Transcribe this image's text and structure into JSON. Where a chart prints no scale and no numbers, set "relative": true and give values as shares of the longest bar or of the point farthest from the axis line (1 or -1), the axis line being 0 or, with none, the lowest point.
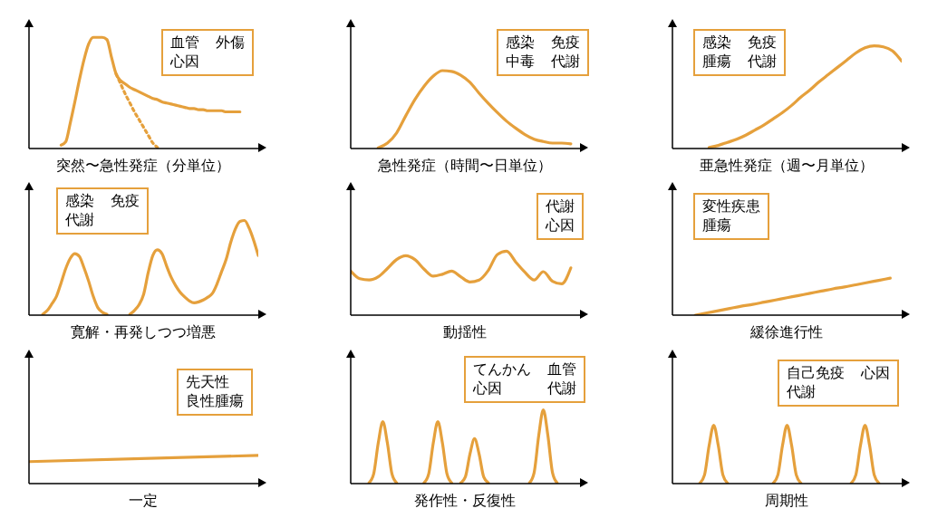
{
  "chart_data": [
    {
      "type": "line",
      "relative": true,
      "marker": "none",
      "xlabel": "突然〜急性発症（分単位）",
      "annotations": [
        "血管",
        "外傷",
        "心因"
      ],
      "categories": [
        null,
        null,
        null,
        null,
        null,
        null,
        null,
        null,
        null,
        null,
        null,
        null,
        null,
        null,
        null,
        null,
        null,
        null,
        null,
        null,
        null,
        null,
        null,
        null,
        null,
        null,
        null,
        null,
        null,
        null,
        null,
        null,
        null,
        null,
        null,
        null,
        null,
        null,
        null,
        null,
        null,
        null,
        null,
        null,
        null,
        null,
        null,
        null,
        null,
        null,
        null
      ],
      "series": [
        {
          "color": "#e5a03c",
          "line_style": "solid",
          "values": [
            null,
            null,
            null,
            null,
            null,
            null,
            null,
            0.03,
            0.06,
            0.23,
            0.42,
            0.62,
            0.8,
            0.94,
            1,
            1,
            1,
            0.98,
            0.82,
            0.67,
            0.61,
            0.58,
            0.55,
            0.53,
            0.51,
            0.49,
            0.47,
            0.45,
            0.44,
            0.42,
            0.41,
            0.4,
            0.39,
            0.38,
            0.37,
            0.36,
            0.36,
            0.35,
            0.35,
            0.34,
            0.34,
            0.34,
            0.34,
            0.33,
            0.33,
            0.33,
            0.33,
            null,
            null,
            null,
            null
          ]
        },
        {
          "color": "#e5a03c",
          "line_style": "dotted",
          "values": [
            null,
            null,
            null,
            null,
            null,
            null,
            null,
            null,
            null,
            null,
            null,
            null,
            null,
            null,
            null,
            null,
            null,
            null,
            null,
            0.67,
            0.58,
            0.49,
            0.41,
            0.33,
            0.26,
            0.19,
            0.12,
            0.05,
            0.01,
            null,
            null,
            null,
            null,
            null,
            null,
            null,
            null,
            null,
            null,
            null,
            null,
            null,
            null,
            null,
            null,
            null,
            null,
            null,
            null,
            null,
            null
          ]
        }
      ]
    },
    {
      "type": "line",
      "relative": true,
      "marker": "none",
      "xlabel": "急性発症（時間〜日単位）",
      "annotations": [
        "感染",
        "免疫",
        "中毒",
        "代謝"
      ],
      "categories": [
        null,
        null,
        null,
        null,
        null,
        null,
        null,
        null,
        null,
        null,
        null,
        null,
        null,
        null,
        null,
        null,
        null,
        null,
        null,
        null,
        null,
        null,
        null,
        null,
        null,
        null
      ],
      "series": [
        {
          "color": "#e5a03c",
          "line_style": "solid",
          "values": [
            null,
            null,
            null,
            0.01,
            0.07,
            0.2,
            0.42,
            0.63,
            0.8,
            0.93,
            1,
            0.99,
            0.94,
            0.85,
            0.71,
            0.58,
            0.46,
            0.35,
            0.26,
            0.18,
            0.12,
            0.09,
            0.07,
            0.07,
            0.06,
            null
          ]
        }
      ]
    },
    {
      "type": "line",
      "relative": true,
      "marker": "none",
      "xlabel": "亜急性発症（週〜月単位）",
      "annotations": [
        "感染",
        "免疫",
        "腫瘍",
        "代謝"
      ],
      "categories": [
        null,
        null,
        null,
        null,
        null,
        null,
        null,
        null,
        null,
        null,
        null,
        null,
        null,
        null,
        null,
        null,
        null,
        null,
        null,
        null,
        null,
        null,
        null,
        null,
        null,
        null
      ],
      "series": [
        {
          "color": "#e5a03c",
          "line_style": "solid",
          "values": [
            null,
            null,
            null,
            null,
            0.01,
            0.03,
            0.06,
            0.09,
            0.13,
            0.18,
            0.23,
            0.29,
            0.35,
            0.42,
            0.5,
            0.57,
            0.65,
            0.72,
            0.79,
            0.86,
            0.93,
            0.98,
            1,
            0.99,
            0.95,
            0.85
          ]
        }
      ]
    },
    {
      "type": "line",
      "relative": true,
      "marker": "none",
      "xlabel": "寛解・再発しつつ増悪",
      "annotations": [
        "感染",
        "免疫",
        "代謝"
      ],
      "categories": [
        null,
        null,
        null,
        null,
        null,
        null,
        null,
        null,
        null,
        null,
        null,
        null,
        null,
        null,
        null,
        null,
        null,
        null,
        null,
        null,
        null,
        null,
        null,
        null,
        null,
        null,
        null,
        null,
        null,
        null,
        null,
        null,
        null,
        null,
        null,
        null,
        null,
        null,
        null,
        null,
        null,
        null,
        null,
        null,
        null,
        null,
        null,
        null,
        null,
        null,
        null
      ],
      "series": [
        {
          "color": "#e5a03c",
          "line_style": "solid",
          "values": [
            null,
            null,
            null,
            0.01,
            0.05,
            0.12,
            0.2,
            0.34,
            0.49,
            0.6,
            0.65,
            0.62,
            0.5,
            0.36,
            0.2,
            0.08,
            0.03,
            0.01,
            null,
            null,
            null,
            null,
            0.01,
            0.05,
            0.11,
            0.22,
            0.45,
            0.63,
            0.69,
            0.65,
            0.52,
            0.4,
            0.31,
            0.24,
            0.19,
            0.15,
            0.13,
            0.14,
            0.16,
            0.19,
            0.23,
            0.33,
            0.46,
            0.59,
            0.77,
            0.91,
            0.99,
            1,
            0.92,
            0.79,
            0.63
          ]
        }
      ]
    },
    {
      "type": "line",
      "relative": true,
      "marker": "none",
      "xlabel": "動揺性",
      "annotations": [
        "代謝",
        "心因"
      ],
      "categories": [
        null,
        null,
        null,
        null,
        null,
        null,
        null,
        null,
        null,
        null,
        null,
        null,
        null,
        null,
        null,
        null,
        null,
        null,
        null,
        null,
        null,
        null,
        null,
        null,
        null,
        null
      ],
      "series": [
        {
          "color": "#e5a03c",
          "line_style": "solid",
          "values": [
            0.69,
            0.57,
            0.55,
            0.6,
            0.73,
            0.87,
            0.93,
            0.87,
            0.72,
            0.61,
            0.64,
            0.69,
            0.6,
            0.52,
            0.55,
            0.7,
            0.95,
            1,
            0.83,
            0.67,
            0.55,
            0.68,
            0.53,
            0.49,
            0.74,
            null
          ]
        }
      ]
    },
    {
      "type": "line",
      "relative": true,
      "marker": "none",
      "xlabel": "緩徐進行性",
      "annotations": [
        "変性疾患",
        "腫瘍"
      ],
      "categories": [
        null,
        null,
        null,
        null,
        null,
        null,
        null,
        null,
        null,
        null,
        null,
        null,
        null,
        null,
        null,
        null,
        null,
        null,
        null,
        null,
        null
      ],
      "series": [
        {
          "color": "#e5a03c",
          "line_style": "solid",
          "values": [
            null,
            null,
            0,
            0.06,
            0.12,
            0.18,
            0.24,
            0.29,
            0.35,
            0.41,
            0.47,
            0.53,
            0.59,
            0.65,
            0.71,
            0.76,
            0.82,
            0.88,
            0.94,
            1,
            null
          ]
        }
      ]
    },
    {
      "type": "line",
      "relative": true,
      "marker": "none",
      "xlabel": "一定",
      "annotations": [
        "先天性",
        "良性腫瘍"
      ],
      "categories": [
        null,
        null
      ],
      "series": [
        {
          "color": "#e5a03c",
          "line_style": "solid",
          "values": [
            0.78,
            1
          ]
        }
      ]
    },
    {
      "type": "line",
      "relative": true,
      "marker": "none",
      "xlabel": "発作性・反復性",
      "annotations": [
        "てんかん",
        "血管",
        "心因",
        "代謝"
      ],
      "categories": [
        null,
        null,
        null,
        null,
        null,
        null,
        null,
        null,
        null,
        null,
        null,
        null,
        null,
        null,
        null,
        null,
        null,
        null,
        null,
        null,
        null,
        null,
        null,
        null,
        null,
        null,
        null,
        null,
        null,
        null,
        null,
        null,
        null,
        null,
        null,
        null,
        null,
        null,
        null,
        null,
        null,
        null,
        null,
        null,
        null,
        null,
        null,
        null,
        null,
        null,
        null
      ],
      "series": [
        {
          "color": "#e5a03c",
          "line_style": "solid",
          "values": [
            null,
            null,
            null,
            null,
            0.01,
            0.13,
            0.55,
            0.84,
            0.55,
            0.13,
            0.01,
            null,
            null,
            null,
            null,
            null,
            null,
            null,
            null,
            null,
            null,
            null,
            null,
            null,
            null,
            null,
            null,
            null,
            null,
            null,
            null,
            null,
            null,
            null,
            null,
            null,
            null,
            null,
            null,
            null,
            null,
            null,
            null,
            null,
            null,
            null,
            null,
            null,
            null,
            null,
            null
          ]
        },
        {
          "color": "#e5a03c",
          "line_style": "solid",
          "values": [
            null,
            null,
            null,
            null,
            null,
            null,
            null,
            null,
            null,
            null,
            null,
            null,
            null,
            null,
            null,
            null,
            0.01,
            0.13,
            0.55,
            0.84,
            0.55,
            0.13,
            0.01,
            null,
            null,
            null,
            null,
            null,
            null,
            null,
            null,
            null,
            null,
            null,
            null,
            null,
            null,
            null,
            null,
            null,
            null,
            null,
            null,
            null,
            null,
            null,
            null,
            null,
            null,
            null,
            null
          ]
        },
        {
          "color": "#e5a03c",
          "line_style": "solid",
          "values": [
            null,
            null,
            null,
            null,
            null,
            null,
            null,
            null,
            null,
            null,
            null,
            null,
            null,
            null,
            null,
            null,
            null,
            null,
            null,
            null,
            null,
            null,
            null,
            null,
            0.01,
            0.09,
            0.4,
            0.61,
            0.4,
            0.09,
            0.01,
            null,
            null,
            null,
            null,
            null,
            null,
            null,
            null,
            null,
            null,
            null,
            null,
            null,
            null,
            null,
            null,
            null,
            null,
            null,
            null
          ]
        },
        {
          "color": "#e5a03c",
          "line_style": "solid",
          "values": [
            null,
            null,
            null,
            null,
            null,
            null,
            null,
            null,
            null,
            null,
            null,
            null,
            null,
            null,
            null,
            null,
            null,
            null,
            null,
            null,
            null,
            null,
            null,
            null,
            null,
            null,
            null,
            null,
            null,
            null,
            null,
            null,
            null,
            null,
            null,
            null,
            null,
            null,
            null,
            0.01,
            0.15,
            0.65,
            1,
            0.65,
            0.15,
            0.01,
            null,
            null,
            null,
            null,
            null
          ]
        }
      ]
    },
    {
      "type": "line",
      "relative": true,
      "marker": "none",
      "xlabel": "周期性",
      "annotations": [
        "自己免疫",
        "心因",
        "代謝"
      ],
      "categories": [
        null,
        null,
        null,
        null,
        null,
        null,
        null,
        null,
        null,
        null,
        null,
        null,
        null,
        null,
        null,
        null,
        null,
        null,
        null,
        null,
        null,
        null,
        null,
        null,
        null,
        null,
        null,
        null,
        null,
        null,
        null,
        null,
        null,
        null,
        null,
        null,
        null,
        null,
        null,
        null,
        null,
        null,
        null,
        null,
        null,
        null,
        null,
        null,
        null,
        null,
        null
      ],
      "series": [
        {
          "color": "#e5a03c",
          "line_style": "solid",
          "values": [
            null,
            null,
            null,
            null,
            null,
            null,
            0.01,
            0.15,
            0.65,
            1,
            0.65,
            0.15,
            0.01,
            null,
            null,
            null,
            null,
            null,
            null,
            null,
            null,
            null,
            null,
            null,
            null,
            null,
            null,
            null,
            null,
            null,
            null,
            null,
            null,
            null,
            null,
            null,
            null,
            null,
            null,
            null,
            null,
            null,
            null,
            null,
            null,
            null,
            null,
            null,
            null,
            null,
            null
          ]
        },
        {
          "color": "#e5a03c",
          "line_style": "solid",
          "values": [
            null,
            null,
            null,
            null,
            null,
            null,
            null,
            null,
            null,
            null,
            null,
            null,
            null,
            null,
            null,
            null,
            null,
            null,
            null,
            null,
            null,
            null,
            0.01,
            0.15,
            0.65,
            1,
            0.65,
            0.15,
            0.01,
            null,
            null,
            null,
            null,
            null,
            null,
            null,
            null,
            null,
            null,
            null,
            null,
            null,
            null,
            null,
            null,
            null,
            null,
            null,
            null,
            null,
            null
          ]
        },
        {
          "color": "#e5a03c",
          "line_style": "solid",
          "values": [
            null,
            null,
            null,
            null,
            null,
            null,
            null,
            null,
            null,
            null,
            null,
            null,
            null,
            null,
            null,
            null,
            null,
            null,
            null,
            null,
            null,
            null,
            null,
            null,
            null,
            null,
            null,
            null,
            null,
            null,
            null,
            null,
            null,
            null,
            null,
            null,
            null,
            null,
            null,
            0.01,
            0.15,
            0.65,
            1,
            0.65,
            0.15,
            0.01,
            null,
            null,
            null,
            null,
            null
          ]
        }
      ]
    }
  ]
}
